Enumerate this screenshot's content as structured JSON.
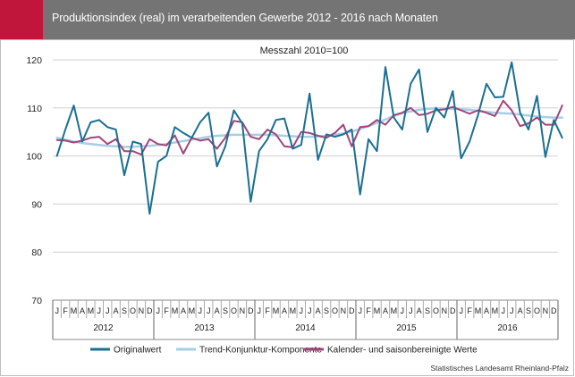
{
  "header": {
    "title": "Produktionsindex (real) im verarbeitenden Gewerbe 2012 - 2016 nach Monaten"
  },
  "footer": {
    "source": "Statistisches Landesamt Rheinland-Pfalz"
  },
  "colors": {
    "header_bg": "#747474",
    "accent": "#c0163b",
    "series_original": "#1a6f93",
    "series_trend": "#a6cfe6",
    "series_seasonal": "#a0457a",
    "grid": "#d0d0d0"
  },
  "chart_data": {
    "type": "line",
    "title": "",
    "subtitle": "Messzahl 2010=100",
    "ylim": [
      70,
      120
    ],
    "yticks": [
      70,
      80,
      90,
      100,
      110,
      120
    ],
    "grid": true,
    "legend_position": "bottom",
    "month_labels": [
      "J",
      "F",
      "M",
      "A",
      "M",
      "J",
      "J",
      "A",
      "S",
      "O",
      "N",
      "D"
    ],
    "years": [
      "2012",
      "2013",
      "2014",
      "2015",
      "2016"
    ],
    "series": [
      {
        "name": "Originalwert",
        "color": "#1a6f93",
        "values": [
          100,
          105.5,
          110.5,
          103,
          107,
          107.5,
          106,
          105.5,
          96,
          103,
          102.5,
          88,
          98.8,
          100,
          106,
          104.8,
          103.8,
          107,
          109,
          97.8,
          102,
          109.5,
          106.8,
          90.5,
          101,
          103.5,
          107.5,
          107.8,
          101.5,
          102.3,
          113,
          99.2,
          104.5,
          104,
          104.5,
          105.5,
          92,
          103.5,
          101,
          118.5,
          108,
          105.5,
          115,
          118,
          105,
          110,
          108,
          113.5,
          99.5,
          103,
          108.5,
          115,
          112.2,
          112.3,
          119.5,
          109,
          105.5,
          112.5,
          99.8,
          107.5,
          103.8
        ]
      },
      {
        "name": "Trend-Konjunktur-Komponente",
        "color": "#a6cfe6",
        "values": [
          103.8,
          103.4,
          103,
          102.7,
          102.5,
          102.3,
          102.1,
          102,
          101.9,
          101.9,
          102,
          102.1,
          102.3,
          102.5,
          102.8,
          103.1,
          103.4,
          103.7,
          104,
          104.2,
          104.3,
          104.4,
          104.4,
          104.4,
          104.4,
          104.4,
          104.3,
          104.2,
          104.1,
          104,
          104,
          104.1,
          104.2,
          104.4,
          104.7,
          105.1,
          105.6,
          106.2,
          106.9,
          107.6,
          108.3,
          108.9,
          109.3,
          109.6,
          109.8,
          109.9,
          109.9,
          109.8,
          109.7,
          109.6,
          109.4,
          109.2,
          109,
          108.9,
          108.8,
          108.6,
          108.4,
          108.2,
          108.1,
          108,
          108
        ]
      },
      {
        "name": "Kalender- und saisonbereinigte Werte",
        "color": "#a0457a",
        "values": [
          103.3,
          103.2,
          102.8,
          103.2,
          103.8,
          104,
          102.5,
          103.5,
          101,
          101,
          100.3,
          103.5,
          102.5,
          102.2,
          104.3,
          100.5,
          103.8,
          103.2,
          103.5,
          101.5,
          103.8,
          107.3,
          107,
          104,
          103.5,
          105.5,
          104.5,
          102,
          101.8,
          105,
          104.8,
          104.2,
          103.8,
          104.8,
          106.5,
          102,
          106,
          106.2,
          107.5,
          106.5,
          108.5,
          109,
          110,
          108.5,
          108.8,
          109.5,
          109.7,
          110.2,
          109.5,
          108.8,
          109.5,
          109,
          108.3,
          111.5,
          109.5,
          106.2,
          106.8,
          108,
          106.5,
          106.5,
          110.5
        ]
      }
    ]
  }
}
